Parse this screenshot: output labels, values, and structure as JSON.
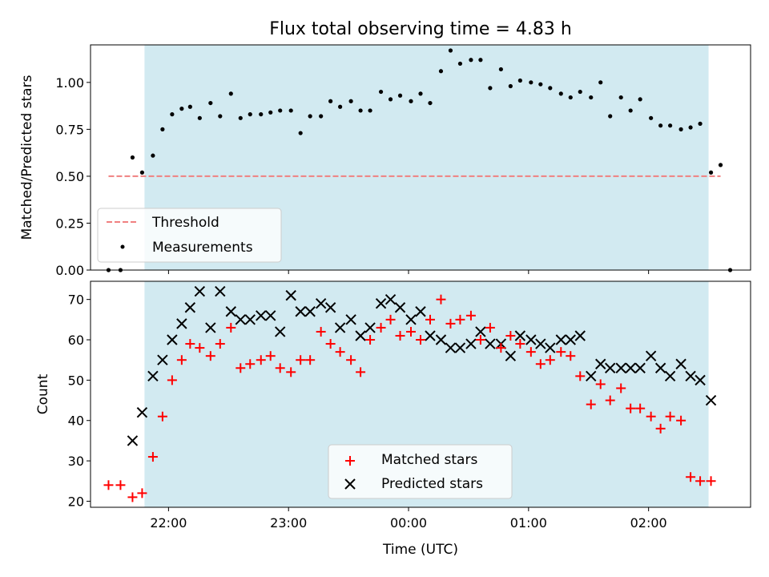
{
  "chart_data": [
    {
      "type": "scatter",
      "title": "Flux total observing time = 4.83 h",
      "ylabel": "Matched/Predicted stars",
      "ylim": [
        0,
        1.2
      ],
      "yticks": [
        0.0,
        0.25,
        0.5,
        0.75,
        1.0
      ],
      "ytick_labels": [
        "0.00",
        "0.25",
        "0.50",
        "0.75",
        "1.00"
      ],
      "x_unit": "hours UTC, 22.0 = 22:00, 24.0 = 00:00",
      "xlim": [
        21.35,
        26.85
      ],
      "shaded_interval": [
        21.8,
        26.5
      ],
      "shade_color": "#add8e6",
      "threshold": {
        "name": "Threshold",
        "value": 0.5,
        "x_range": [
          21.5,
          26.6
        ],
        "color": "#f08080"
      },
      "series": [
        {
          "name": "Measurements",
          "marker": "dot",
          "color": "#000000",
          "points": [
            [
              21.5,
              0.0
            ],
            [
              21.6,
              0.0
            ],
            [
              21.7,
              0.6
            ],
            [
              21.78,
              0.52
            ],
            [
              21.87,
              0.61
            ],
            [
              21.95,
              0.75
            ],
            [
              22.03,
              0.83
            ],
            [
              22.11,
              0.86
            ],
            [
              22.18,
              0.87
            ],
            [
              22.26,
              0.81
            ],
            [
              22.35,
              0.89
            ],
            [
              22.43,
              0.82
            ],
            [
              22.52,
              0.94
            ],
            [
              22.6,
              0.81
            ],
            [
              22.68,
              0.83
            ],
            [
              22.77,
              0.83
            ],
            [
              22.85,
              0.84
            ],
            [
              22.93,
              0.85
            ],
            [
              23.02,
              0.85
            ],
            [
              23.1,
              0.73
            ],
            [
              23.18,
              0.82
            ],
            [
              23.27,
              0.82
            ],
            [
              23.35,
              0.9
            ],
            [
              23.43,
              0.87
            ],
            [
              23.52,
              0.9
            ],
            [
              23.6,
              0.85
            ],
            [
              23.68,
              0.85
            ],
            [
              23.77,
              0.95
            ],
            [
              23.85,
              0.91
            ],
            [
              23.93,
              0.93
            ],
            [
              24.02,
              0.9
            ],
            [
              24.1,
              0.94
            ],
            [
              24.18,
              0.89
            ],
            [
              24.27,
              1.06
            ],
            [
              24.35,
              1.17
            ],
            [
              24.43,
              1.1
            ],
            [
              24.52,
              1.12
            ],
            [
              24.6,
              1.12
            ],
            [
              24.68,
              0.97
            ],
            [
              24.77,
              1.07
            ],
            [
              24.85,
              0.98
            ],
            [
              24.93,
              1.01
            ],
            [
              25.02,
              1.0
            ],
            [
              25.1,
              0.99
            ],
            [
              25.18,
              0.97
            ],
            [
              25.27,
              0.94
            ],
            [
              25.35,
              0.92
            ],
            [
              25.43,
              0.95
            ],
            [
              25.52,
              0.92
            ],
            [
              25.6,
              1.0
            ],
            [
              25.68,
              0.82
            ],
            [
              25.77,
              0.92
            ],
            [
              25.85,
              0.85
            ],
            [
              25.93,
              0.91
            ],
            [
              26.02,
              0.81
            ],
            [
              26.1,
              0.77
            ],
            [
              26.18,
              0.77
            ],
            [
              26.27,
              0.75
            ],
            [
              26.35,
              0.76
            ],
            [
              26.43,
              0.78
            ],
            [
              26.52,
              0.52
            ],
            [
              26.6,
              0.56
            ],
            [
              26.68,
              0.0
            ]
          ]
        }
      ],
      "legend": {
        "position": "lower-left",
        "entries": [
          {
            "label": "Threshold",
            "kind": "dashed-line",
            "color": "#f08080"
          },
          {
            "label": "Measurements",
            "kind": "dot",
            "color": "#000000"
          }
        ]
      }
    },
    {
      "type": "scatter",
      "xlabel": "Time (UTC)",
      "ylabel": "Count",
      "ylim": [
        18.5,
        74.5
      ],
      "yticks": [
        20,
        30,
        40,
        50,
        60,
        70
      ],
      "ytick_labels": [
        "20",
        "30",
        "40",
        "50",
        "60",
        "70"
      ],
      "x_unit": "hours UTC, 22.0 = 22:00, 24.0 = 00:00",
      "xlim": [
        21.35,
        26.85
      ],
      "xticks": [
        22,
        23,
        24,
        25,
        26
      ],
      "xtick_labels": [
        "22:00",
        "23:00",
        "00:00",
        "01:00",
        "02:00"
      ],
      "shaded_interval": [
        21.8,
        26.5
      ],
      "shade_color": "#add8e6",
      "series": [
        {
          "name": "Matched stars",
          "marker": "plus",
          "color": "#ff0000",
          "points": [
            [
              21.5,
              24
            ],
            [
              21.6,
              24
            ],
            [
              21.7,
              21
            ],
            [
              21.78,
              22
            ],
            [
              21.87,
              31
            ],
            [
              21.95,
              41
            ],
            [
              22.03,
              50
            ],
            [
              22.11,
              55
            ],
            [
              22.18,
              59
            ],
            [
              22.26,
              58
            ],
            [
              22.35,
              56
            ],
            [
              22.43,
              59
            ],
            [
              22.52,
              63
            ],
            [
              22.6,
              53
            ],
            [
              22.68,
              54
            ],
            [
              22.77,
              55
            ],
            [
              22.85,
              56
            ],
            [
              22.93,
              53
            ],
            [
              23.02,
              52
            ],
            [
              23.1,
              55
            ],
            [
              23.18,
              55
            ],
            [
              23.27,
              62
            ],
            [
              23.35,
              59
            ],
            [
              23.43,
              57
            ],
            [
              23.52,
              55
            ],
            [
              23.6,
              52
            ],
            [
              23.68,
              60
            ],
            [
              23.77,
              63
            ],
            [
              23.85,
              65
            ],
            [
              23.93,
              61
            ],
            [
              24.02,
              62
            ],
            [
              24.1,
              60
            ],
            [
              24.18,
              65
            ],
            [
              24.27,
              70
            ],
            [
              24.35,
              64
            ],
            [
              24.43,
              65
            ],
            [
              24.52,
              66
            ],
            [
              24.6,
              60
            ],
            [
              24.68,
              63
            ],
            [
              24.77,
              58
            ],
            [
              24.85,
              61
            ],
            [
              24.93,
              59
            ],
            [
              25.02,
              57
            ],
            [
              25.1,
              54
            ],
            [
              25.18,
              55
            ],
            [
              25.27,
              57
            ],
            [
              25.35,
              56
            ],
            [
              25.43,
              51
            ],
            [
              25.52,
              44
            ],
            [
              25.6,
              49
            ],
            [
              25.68,
              45
            ],
            [
              25.77,
              48
            ],
            [
              25.85,
              43
            ],
            [
              25.93,
              43
            ],
            [
              26.02,
              41
            ],
            [
              26.1,
              38
            ],
            [
              26.18,
              41
            ],
            [
              26.27,
              40
            ],
            [
              26.35,
              26
            ],
            [
              26.43,
              25
            ],
            [
              26.52,
              25
            ]
          ]
        },
        {
          "name": "Predicted stars",
          "marker": "x",
          "color": "#000000",
          "points": [
            [
              21.7,
              35
            ],
            [
              21.78,
              42
            ],
            [
              21.87,
              51
            ],
            [
              21.95,
              55
            ],
            [
              22.03,
              60
            ],
            [
              22.11,
              64
            ],
            [
              22.18,
              68
            ],
            [
              22.26,
              72
            ],
            [
              22.35,
              63
            ],
            [
              22.43,
              72
            ],
            [
              22.52,
              67
            ],
            [
              22.6,
              65
            ],
            [
              22.68,
              65
            ],
            [
              22.77,
              66
            ],
            [
              22.85,
              66
            ],
            [
              22.93,
              62
            ],
            [
              23.02,
              71
            ],
            [
              23.1,
              67
            ],
            [
              23.18,
              67
            ],
            [
              23.27,
              69
            ],
            [
              23.35,
              68
            ],
            [
              23.43,
              63
            ],
            [
              23.52,
              65
            ],
            [
              23.6,
              61
            ],
            [
              23.68,
              63
            ],
            [
              23.77,
              69
            ],
            [
              23.85,
              70
            ],
            [
              23.93,
              68
            ],
            [
              24.02,
              65
            ],
            [
              24.1,
              67
            ],
            [
              24.18,
              61
            ],
            [
              24.27,
              60
            ],
            [
              24.35,
              58
            ],
            [
              24.43,
              58
            ],
            [
              24.52,
              59
            ],
            [
              24.6,
              62
            ],
            [
              24.68,
              59
            ],
            [
              24.77,
              59
            ],
            [
              24.85,
              56
            ],
            [
              24.93,
              61
            ],
            [
              25.02,
              60
            ],
            [
              25.1,
              59
            ],
            [
              25.18,
              58
            ],
            [
              25.27,
              60
            ],
            [
              25.35,
              60
            ],
            [
              25.43,
              61
            ],
            [
              25.52,
              51
            ],
            [
              25.6,
              54
            ],
            [
              25.68,
              53
            ],
            [
              25.77,
              53
            ],
            [
              25.85,
              53
            ],
            [
              25.93,
              53
            ],
            [
              26.02,
              56
            ],
            [
              26.1,
              53
            ],
            [
              26.18,
              51
            ],
            [
              26.27,
              54
            ],
            [
              26.35,
              51
            ],
            [
              26.43,
              50
            ],
            [
              26.52,
              45
            ]
          ]
        }
      ],
      "legend": {
        "position": "lower-center",
        "entries": [
          {
            "label": "Matched stars",
            "kind": "plus",
            "color": "#ff0000"
          },
          {
            "label": "Predicted stars",
            "kind": "x",
            "color": "#000000"
          }
        ]
      }
    }
  ]
}
